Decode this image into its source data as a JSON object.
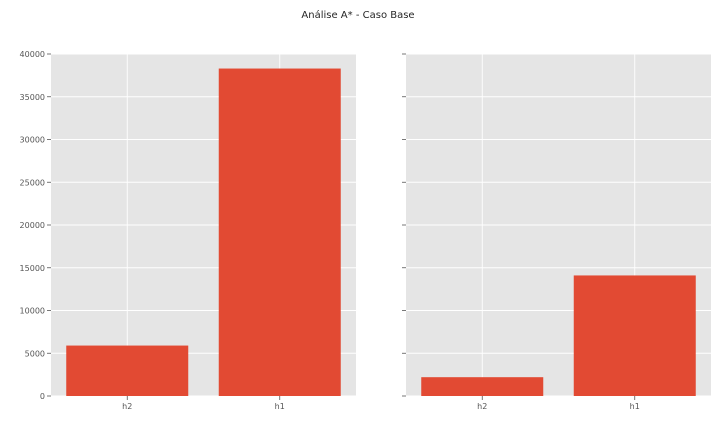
{
  "figure": {
    "suptitle": "Análise A* - Caso Base"
  },
  "colors": {
    "bar": "#E24A33",
    "axes_bg": "#E5E5E5",
    "grid": "#FFFFFF"
  },
  "chart_data": [
    {
      "type": "bar",
      "title": "",
      "xlabel": "",
      "ylabel": "",
      "categories": [
        "h2",
        "h1"
      ],
      "values": [
        5900,
        38300
      ],
      "ylim": [
        0,
        40000
      ],
      "yticks": [
        0,
        5000,
        10000,
        15000,
        20000,
        25000,
        30000,
        35000,
        40000
      ],
      "ytick_labels": [
        "0",
        "5000",
        "10000",
        "15000",
        "20000",
        "25000",
        "30000",
        "35000",
        "40000"
      ],
      "grid": true,
      "legend": "none"
    },
    {
      "type": "bar",
      "title": "",
      "xlabel": "",
      "ylabel": "",
      "categories": [
        "h2",
        "h1"
      ],
      "values": [
        2200,
        14100
      ],
      "ylim": [
        0,
        40000
      ],
      "yticks": [
        0,
        5000,
        10000,
        15000,
        20000,
        25000,
        30000,
        35000,
        40000
      ],
      "ytick_labels": [],
      "grid": true,
      "legend": "none",
      "sharey": true
    }
  ]
}
